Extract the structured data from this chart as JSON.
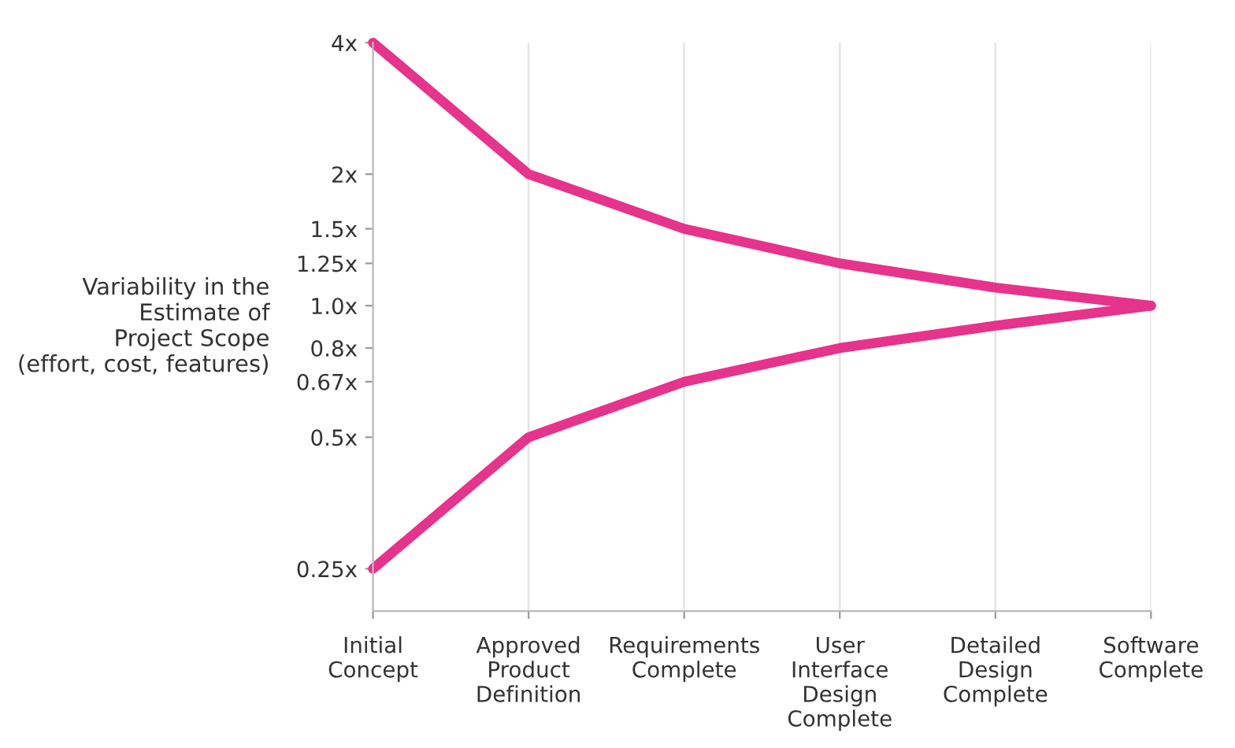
{
  "chart_data": {
    "type": "line",
    "ylabel": "Variability in the\nEstimate of\nProject Scope\n(effort, cost, features)",
    "categories": [
      "Initial\nConcept",
      "Approved\nProduct\nDefinition",
      "Requirements\nComplete",
      "User\nInterface\nDesign\nComplete",
      "Detailed\nDesign\nComplete",
      "Software\nComplete"
    ],
    "series": [
      {
        "color": "#e6338c",
        "values": [
          4,
          2,
          1.5,
          1.25,
          1.1,
          1.0
        ]
      },
      {
        "color": "#e6338c",
        "values": [
          0.25,
          0.5,
          0.67,
          0.8,
          0.9,
          1.0
        ]
      }
    ],
    "log": "y",
    "ylim": [
      0.2,
      4
    ],
    "yticks": [
      {
        "value": 0.25,
        "label": "0.25x"
      },
      {
        "value": 0.5,
        "label": "0.5x"
      },
      {
        "value": 0.67,
        "label": "0.67x"
      },
      {
        "value": 0.8,
        "label": "0.8x"
      },
      {
        "value": 1.0,
        "label": "1.0x"
      },
      {
        "value": 1.25,
        "label": "1.25x"
      },
      {
        "value": 1.5,
        "label": "1.5x"
      },
      {
        "value": 2,
        "label": "2x"
      },
      {
        "value": 4,
        "label": "4x"
      }
    ],
    "grid": "x",
    "marker": "none",
    "line_style": "solid"
  }
}
